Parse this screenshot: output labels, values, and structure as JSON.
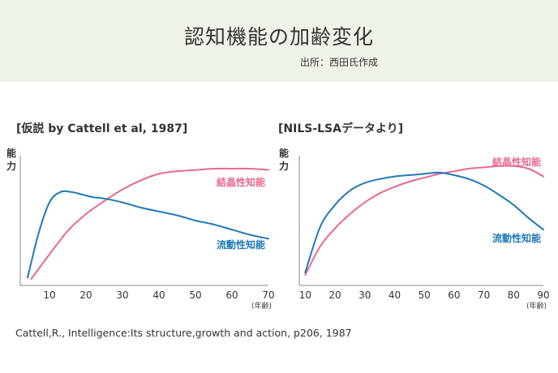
{
  "header": {
    "title": "認知機能の加齢変化",
    "source": "出所：西田氏作成"
  },
  "citation": "Cattell,R., Intelligence:Its structure,growth and action, p206, 1987",
  "colors": {
    "crystallized": "#e8698f",
    "fluid": "#1f7ab5",
    "axis": "#888888",
    "header_bg": "#eef3ea"
  },
  "chart_data": [
    {
      "type": "line",
      "title": "[仮説 by Cattell et al, 1987]",
      "ylabel": "能力",
      "xlabel": "(年齢)",
      "xlim": [
        2,
        70
      ],
      "ylim": [
        0,
        100
      ],
      "xticks": [
        10,
        20,
        30,
        40,
        50,
        60,
        70
      ],
      "series": [
        {
          "name": "結晶性知能",
          "color": "#e8698f",
          "x": [
            5,
            10,
            15,
            20,
            25,
            30,
            35,
            40,
            45,
            50,
            55,
            60,
            65,
            70
          ],
          "y": [
            5,
            24,
            42,
            55,
            65,
            74,
            81,
            86,
            88,
            89,
            90,
            90,
            90,
            89
          ]
        },
        {
          "name": "流動性知能",
          "color": "#1f7ab5",
          "x": [
            4,
            7,
            10,
            13,
            16,
            19,
            22,
            25,
            30,
            35,
            40,
            45,
            50,
            55,
            60,
            65,
            70
          ],
          "y": [
            6,
            40,
            64,
            72,
            72,
            70,
            68,
            67,
            64,
            60,
            57,
            54,
            50,
            47,
            43,
            39,
            36
          ]
        }
      ]
    },
    {
      "type": "line",
      "title": "[NILS-LSAデータより]",
      "ylabel": "能力",
      "xlabel": "(年齢)",
      "xlim": [
        8,
        90
      ],
      "ylim": [
        0,
        100
      ],
      "xticks": [
        10,
        20,
        30,
        40,
        50,
        60,
        70,
        80,
        90
      ],
      "series": [
        {
          "name": "結晶性知能",
          "color": "#e8698f",
          "x": [
            10,
            15,
            20,
            25,
            30,
            35,
            40,
            45,
            50,
            55,
            60,
            65,
            70,
            75,
            80,
            85,
            90
          ],
          "y": [
            8,
            30,
            44,
            55,
            64,
            71,
            76,
            80,
            83,
            86,
            88,
            90,
            91,
            92,
            92,
            90,
            84
          ]
        },
        {
          "name": "流動性知能",
          "color": "#1f7ab5",
          "x": [
            10,
            15,
            20,
            25,
            30,
            35,
            40,
            45,
            50,
            55,
            60,
            65,
            70,
            75,
            80,
            85,
            90
          ],
          "y": [
            10,
            45,
            62,
            73,
            79,
            82,
            84,
            85,
            86,
            87,
            85,
            82,
            77,
            70,
            62,
            52,
            43
          ]
        }
      ]
    }
  ]
}
